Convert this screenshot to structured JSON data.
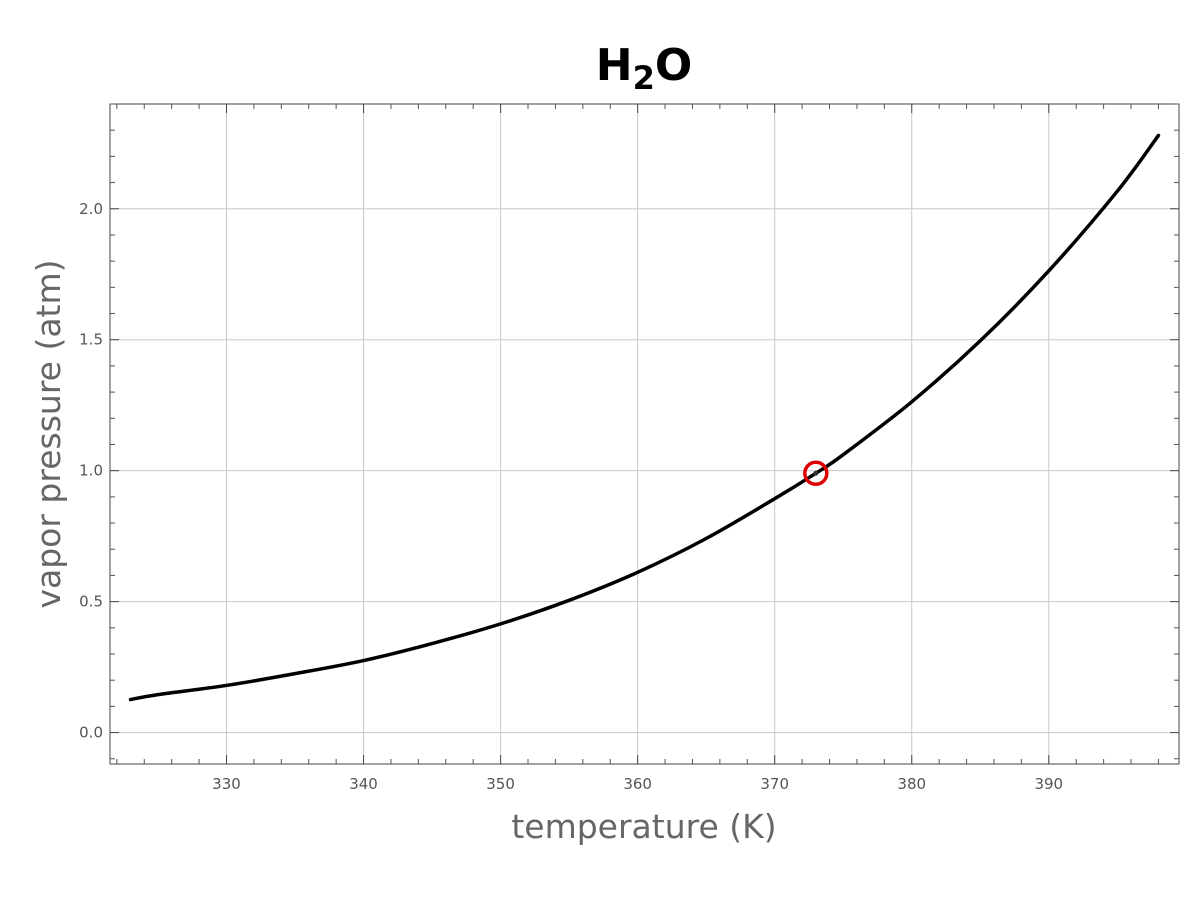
{
  "chart_data": {
    "type": "line",
    "title_main": "H",
    "title_sub": "2",
    "title_tail": "O",
    "xlabel": "temperature (K)",
    "ylabel": "vapor pressure (atm)",
    "xlim": [
      321.5,
      399.5
    ],
    "ylim": [
      -0.12,
      2.4
    ],
    "xticks": [
      330,
      340,
      350,
      360,
      370,
      380,
      390
    ],
    "xtick_labels": [
      "330",
      "340",
      "350",
      "360",
      "370",
      "380",
      "390"
    ],
    "yticks": [
      0.0,
      0.5,
      1.0,
      1.5,
      2.0
    ],
    "ytick_labels": [
      "0.0",
      "0.5",
      "1.0",
      "1.5",
      "2.0"
    ],
    "grid": true,
    "series": [
      {
        "color": "#000000",
        "x": [
          323,
          325,
          330,
          335,
          340,
          345,
          350,
          355,
          360,
          365,
          370,
          373,
          375,
          380,
          385,
          390,
          395,
          398
        ],
        "y": [
          0.126,
          0.145,
          0.18,
          0.225,
          0.275,
          0.34,
          0.415,
          0.505,
          0.612,
          0.741,
          0.893,
          0.99,
          1.061,
          1.263,
          1.496,
          1.763,
          2.067,
          2.28
        ]
      }
    ],
    "highlight_point": {
      "x": 373,
      "y": 0.99,
      "color": "#dd0000"
    }
  }
}
